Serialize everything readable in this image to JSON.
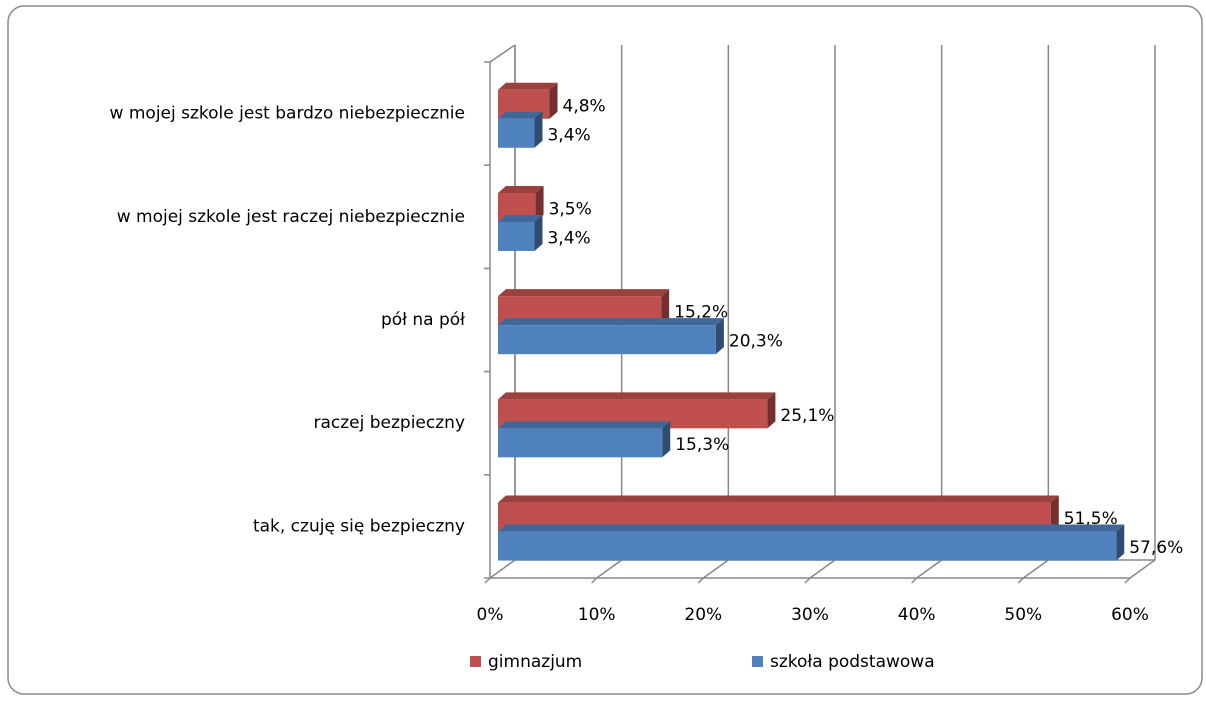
{
  "chart_data": {
    "type": "bar3d_horizontal",
    "categories": [
      "w mojej szkole jest bardzo niebezpiecznie",
      "w mojej szkole jest raczej niebezpiecznie",
      "pół na pół",
      "raczej bezpieczny",
      "tak, czuję się bezpieczny"
    ],
    "series": [
      {
        "name": "gimnazjum",
        "color": "#c0504d",
        "values": [
          4.8,
          3.5,
          15.2,
          25.1,
          51.5
        ],
        "value_labels": [
          "4,8%",
          "3,5%",
          "15,2%",
          "25,1%",
          "51,5%"
        ]
      },
      {
        "name": "szkoła podstawowa",
        "color": "#4f81bd",
        "values": [
          3.4,
          3.4,
          20.3,
          15.3,
          57.6
        ],
        "value_labels": [
          "3,4%",
          "3,4%",
          "20,3%",
          "15,3%",
          "57,6%"
        ]
      }
    ],
    "xlim": [
      0,
      60
    ],
    "xticks": [
      {
        "value": 0,
        "label": "0%"
      },
      {
        "value": 10,
        "label": "10%"
      },
      {
        "value": 20,
        "label": "20%"
      },
      {
        "value": 30,
        "label": "30%"
      },
      {
        "value": 40,
        "label": "40%"
      },
      {
        "value": 50,
        "label": "50%"
      },
      {
        "value": 60,
        "label": "60%"
      }
    ],
    "grid": true,
    "legend": "bottom"
  }
}
